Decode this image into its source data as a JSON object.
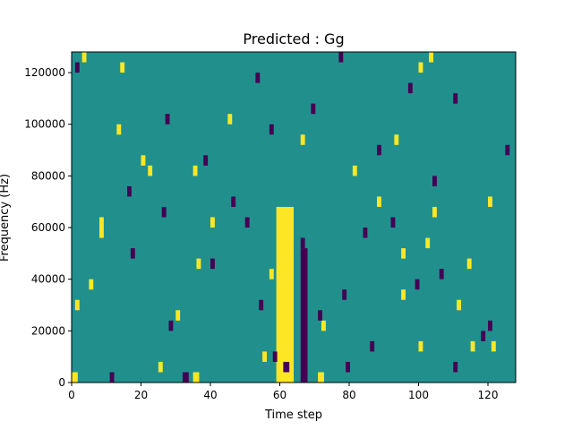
{
  "chart_data": {
    "type": "heatmap",
    "title": "Predicted : Gg",
    "xlabel": "Time step",
    "ylabel": "Frequency (Hz)",
    "xlim": [
      0,
      128
    ],
    "ylim": [
      0,
      128000
    ],
    "x_ticks": [
      {
        "value": 0,
        "label": "0"
      },
      {
        "value": 20,
        "label": "20"
      },
      {
        "value": 40,
        "label": "40"
      },
      {
        "value": 60,
        "label": "60"
      },
      {
        "value": 80,
        "label": "80"
      },
      {
        "value": 100,
        "label": "100"
      },
      {
        "value": 120,
        "label": "120"
      }
    ],
    "y_ticks": [
      {
        "value": 0,
        "label": "0"
      },
      {
        "value": 20000,
        "label": "20000"
      },
      {
        "value": 40000,
        "label": "40000"
      },
      {
        "value": 60000,
        "label": "60000"
      },
      {
        "value": 80000,
        "label": "80000"
      },
      {
        "value": 100000,
        "label": "100000"
      },
      {
        "value": 120000,
        "label": "120000"
      }
    ],
    "grid": false,
    "colormap": "viridis",
    "colors": {
      "background": "#21908d",
      "high": "#fde725",
      "low": "#440154"
    },
    "row_height": 4000,
    "background_value": 0,
    "high_value": 1,
    "low_value": -1,
    "high_cells": [
      [
        0,
        0,
        6
      ],
      [
        35,
        0,
        6
      ],
      [
        60,
        0,
        4
      ],
      [
        71,
        0,
        6
      ],
      [
        25,
        4000,
        4
      ],
      [
        55,
        8000,
        4
      ],
      [
        100,
        12000,
        4
      ],
      [
        121,
        12000,
        4
      ],
      [
        1,
        28000,
        4
      ],
      [
        111,
        28000,
        4
      ],
      [
        95,
        32000,
        4
      ],
      [
        5,
        36000,
        4
      ],
      [
        57,
        40000,
        4
      ],
      [
        36,
        44000,
        4
      ],
      [
        114,
        44000,
        4
      ],
      [
        95,
        48000,
        4
      ],
      [
        102,
        52000,
        4
      ],
      [
        8,
        56000,
        4
      ],
      [
        104,
        64000,
        4
      ],
      [
        40,
        60000,
        4
      ],
      [
        35,
        80000,
        4
      ],
      [
        22,
        80000,
        4
      ],
      [
        81,
        80000,
        4
      ],
      [
        13,
        96000,
        4
      ],
      [
        66,
        92000,
        4
      ],
      [
        93,
        92000,
        4
      ],
      [
        14,
        120000,
        4
      ],
      [
        100,
        120000,
        4
      ],
      [
        3,
        124000,
        4
      ],
      [
        103,
        124000,
        4
      ],
      [
        20,
        84000,
        4
      ],
      [
        120,
        68000,
        4
      ],
      [
        30,
        24000,
        4
      ],
      [
        72,
        20000,
        4
      ],
      [
        115,
        12000,
        4
      ],
      [
        45,
        100000,
        4
      ],
      [
        88,
        68000,
        4
      ],
      [
        8,
        60000,
        4
      ]
    ],
    "low_cells": [
      [
        11,
        0,
        4
      ],
      [
        32,
        0,
        6
      ],
      [
        61,
        4000,
        6
      ],
      [
        79,
        4000,
        4
      ],
      [
        58,
        8000,
        4
      ],
      [
        86,
        12000,
        4
      ],
      [
        118,
        16000,
        4
      ],
      [
        28,
        20000,
        4
      ],
      [
        54,
        28000,
        4
      ],
      [
        99,
        36000,
        4
      ],
      [
        106,
        40000,
        4
      ],
      [
        17,
        48000,
        4
      ],
      [
        66,
        52000,
        4
      ],
      [
        84,
        56000,
        4
      ],
      [
        92,
        60000,
        4
      ],
      [
        46,
        68000,
        4
      ],
      [
        16,
        72000,
        4
      ],
      [
        104,
        76000,
        4
      ],
      [
        38,
        84000,
        4
      ],
      [
        88,
        88000,
        4
      ],
      [
        57,
        96000,
        4
      ],
      [
        27,
        100000,
        4
      ],
      [
        69,
        104000,
        4
      ],
      [
        110,
        108000,
        4
      ],
      [
        97,
        112000,
        4
      ],
      [
        53,
        116000,
        4
      ],
      [
        77,
        124000,
        4
      ],
      [
        1,
        120000,
        4
      ],
      [
        125,
        88000,
        4
      ],
      [
        50,
        60000,
        4
      ],
      [
        78,
        32000,
        4
      ],
      [
        40,
        44000,
        4
      ],
      [
        120,
        20000,
        4
      ],
      [
        110,
        4000,
        4
      ],
      [
        71,
        24000,
        4
      ],
      [
        26,
        64000,
        4
      ]
    ],
    "high_band": {
      "x_start": 59,
      "x_end": 64,
      "y_top": 68000
    },
    "low_band": {
      "x_start": 66,
      "x_end": 68,
      "y_top": 52000
    }
  }
}
